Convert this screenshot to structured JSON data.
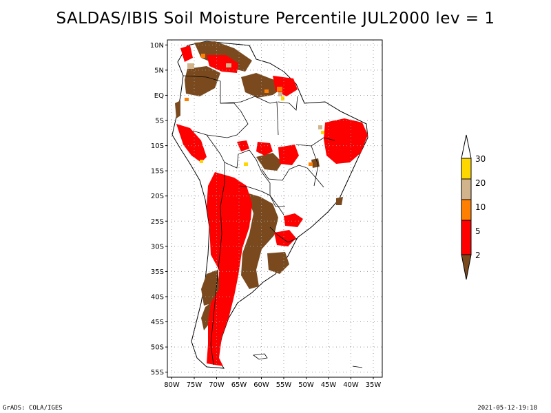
{
  "title": "SALDAS/IBIS Soil Moisture Percentile JUL2000 lev = 1",
  "map": {
    "lat_labels": [
      "10N",
      "5N",
      "EQ",
      "5S",
      "10S",
      "15S",
      "20S",
      "25S",
      "30S",
      "35S",
      "40S",
      "45S",
      "50S",
      "55S"
    ],
    "lon_labels": [
      "80W",
      "75W",
      "70W",
      "65W",
      "60W",
      "55W",
      "50W",
      "45W",
      "40W",
      "35W"
    ],
    "lat_range": [
      -56,
      11
    ],
    "lon_range": [
      -81,
      -33
    ]
  },
  "colorbar": {
    "labels": [
      "2",
      "5",
      "10",
      "20",
      "30"
    ],
    "colors": {
      "below_2": "#7a4a1e",
      "2_to_5": "#ff0000",
      "5_to_10": "#ff8000",
      "10_to_20": "#d2b48c",
      "20_to_30": "#ffd700",
      "above_30": "#ffffff"
    }
  },
  "footer": {
    "left": "GrADS: COLA/IGES",
    "right": "2021-05-12-19:18"
  }
}
